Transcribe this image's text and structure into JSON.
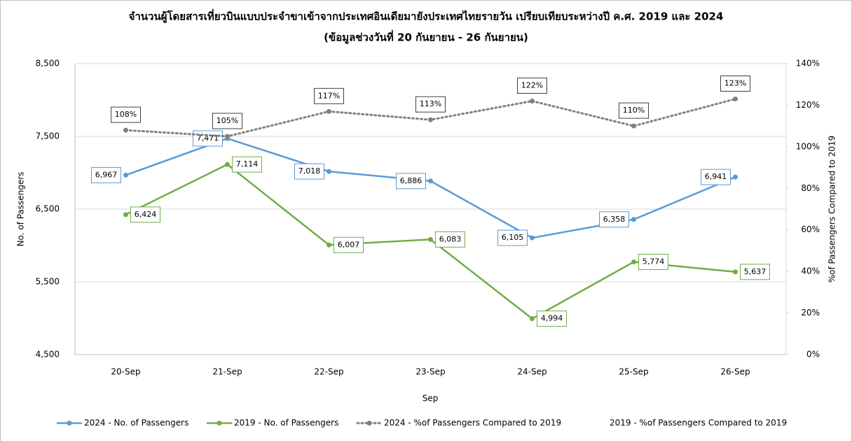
{
  "chart_data": {
    "type": "line",
    "title": "จำนวนผู้โดยสารเที่ยวบินแบบประจำขาเข้าจากประเทศอินเดียมายังประเทศไทยรายวัน เปรียบเทียบระหว่างปี ค.ศ. 2019 และ 2024",
    "subtitle": "(ข้อมูลช่วงวันที่ 20 กันยายน - 26 กันยายน)",
    "x_label": "Sep",
    "y_label": "No. of Passengers",
    "y2_label": "%of Passengers Compared to 2019",
    "categories": [
      "20-Sep",
      "21-Sep",
      "22-Sep",
      "23-Sep",
      "24-Sep",
      "25-Sep",
      "26-Sep"
    ],
    "ylim": [
      4500,
      8500
    ],
    "yticks": [
      {
        "value": 4500,
        "label": "4,500"
      },
      {
        "value": 5500,
        "label": "5,500"
      },
      {
        "value": 6500,
        "label": "6,500"
      },
      {
        "value": 7500,
        "label": "7,500"
      },
      {
        "value": 8500,
        "label": "8,500"
      }
    ],
    "y2lim": [
      0,
      140
    ],
    "y2ticks": [
      {
        "value": 0,
        "label": "0%"
      },
      {
        "value": 20,
        "label": "20%"
      },
      {
        "value": 40,
        "label": "40%"
      },
      {
        "value": 60,
        "label": "60%"
      },
      {
        "value": 80,
        "label": "80%"
      },
      {
        "value": 100,
        "label": "100%"
      },
      {
        "value": 120,
        "label": "120%"
      },
      {
        "value": 140,
        "label": "140%"
      }
    ],
    "grid": true,
    "legend": "bottom",
    "series": [
      {
        "name": "2024 - No. of Passengers",
        "color": "#5b9bd5",
        "values": [
          6967,
          7471,
          7018,
          6886,
          6105,
          6358,
          6941
        ],
        "value_labels": [
          "6,967",
          "7,471",
          "7,018",
          "6,886",
          "6,105",
          "6,358",
          "6,941"
        ]
      },
      {
        "name": "2019 - No. of Passengers",
        "color": "#70ad47",
        "values": [
          6424,
          7114,
          6007,
          6083,
          4994,
          5774,
          5637
        ],
        "value_labels": [
          "6,424",
          "7,114",
          "6,007",
          "6,083",
          "4,994",
          "5,774",
          "5,637"
        ]
      },
      {
        "name": "2024 - %of Passengers Compared to 2019",
        "color": "#808080",
        "axis": "y2",
        "dashed": true,
        "values": [
          108,
          105,
          117,
          113,
          122,
          110,
          123
        ],
        "value_labels": [
          "108%",
          "105%",
          "117%",
          "113%",
          "122%",
          "110%",
          "123%"
        ]
      },
      {
        "name": "2019 - %of Passengers Compared to 2019",
        "axis": "y2",
        "values": [
          null,
          null,
          null,
          null,
          null,
          null,
          null
        ]
      }
    ]
  }
}
